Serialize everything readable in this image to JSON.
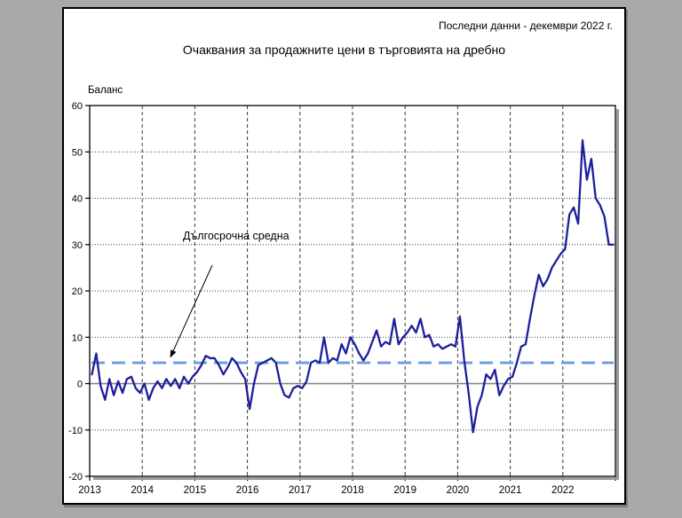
{
  "page": {
    "header_note": "Последни данни - декември 2022 г.",
    "title": "Очаквания за продажните цени в търговията на дребно"
  },
  "chart_data": {
    "type": "line",
    "title": "Очаквания за продажните цени в търговията на дребно",
    "subtitle_note": "Последни данни - декември 2022 г.",
    "ylabel": "Баланс",
    "xlabel": "",
    "ylim": [
      -20,
      60
    ],
    "y_ticks": [
      60,
      50,
      40,
      30,
      20,
      10,
      0,
      -10,
      -20
    ],
    "x_ticks": [
      "2013",
      "2014",
      "2015",
      "2016",
      "2017",
      "2018",
      "2019",
      "2020",
      "2021",
      "2022"
    ],
    "x_frequency": "monthly",
    "x_range": "2013-01 .. 2022-12",
    "grid": true,
    "legend_position": "none",
    "annotation": {
      "label": "Дългосрочна средна",
      "points_to": "dashed average line"
    },
    "long_term_average": 4.5,
    "average_line_color": "#6f9fdf",
    "series": [
      {
        "name": "Очаквания за продажните цени в търговията на дребно (баланс)",
        "color": "#1c1f9c",
        "monthly_values": [
          2,
          6.5,
          -0.5,
          -3.5,
          1,
          -2.5,
          0.5,
          -2,
          1,
          1.5,
          -1,
          -2,
          0,
          -3.5,
          -1,
          0.5,
          -1,
          1,
          -0.5,
          1,
          -1,
          1.5,
          0,
          1.5,
          2.5,
          4,
          6,
          5.5,
          5.5,
          4,
          2,
          3.5,
          5.5,
          4.5,
          2.5,
          1,
          -5.5,
          0,
          4,
          4.5,
          5,
          5.5,
          4.5,
          0,
          -2.5,
          -3,
          -1,
          -0.5,
          -1,
          0.5,
          4.5,
          5,
          4.5,
          10,
          4.5,
          5.5,
          5,
          8.5,
          6.5,
          10,
          8.5,
          6.5,
          5,
          6.5,
          9,
          11.5,
          8,
          9,
          8.5,
          14,
          8.5,
          10,
          11,
          12.5,
          11,
          14,
          10,
          10.5,
          8,
          8.5,
          7.5,
          8,
          8.5,
          8,
          14.5,
          5,
          -2,
          -10.5,
          -5,
          -2.5,
          2,
          1,
          3,
          -2.5,
          -0.5,
          1,
          1.5,
          4.5,
          8,
          8.5,
          14,
          19,
          23.5,
          21,
          22.5,
          25,
          26.5,
          28,
          29,
          36.5,
          38,
          34.5,
          52.5,
          44,
          48.5,
          40,
          38.5,
          36,
          30,
          30
        ]
      }
    ]
  }
}
